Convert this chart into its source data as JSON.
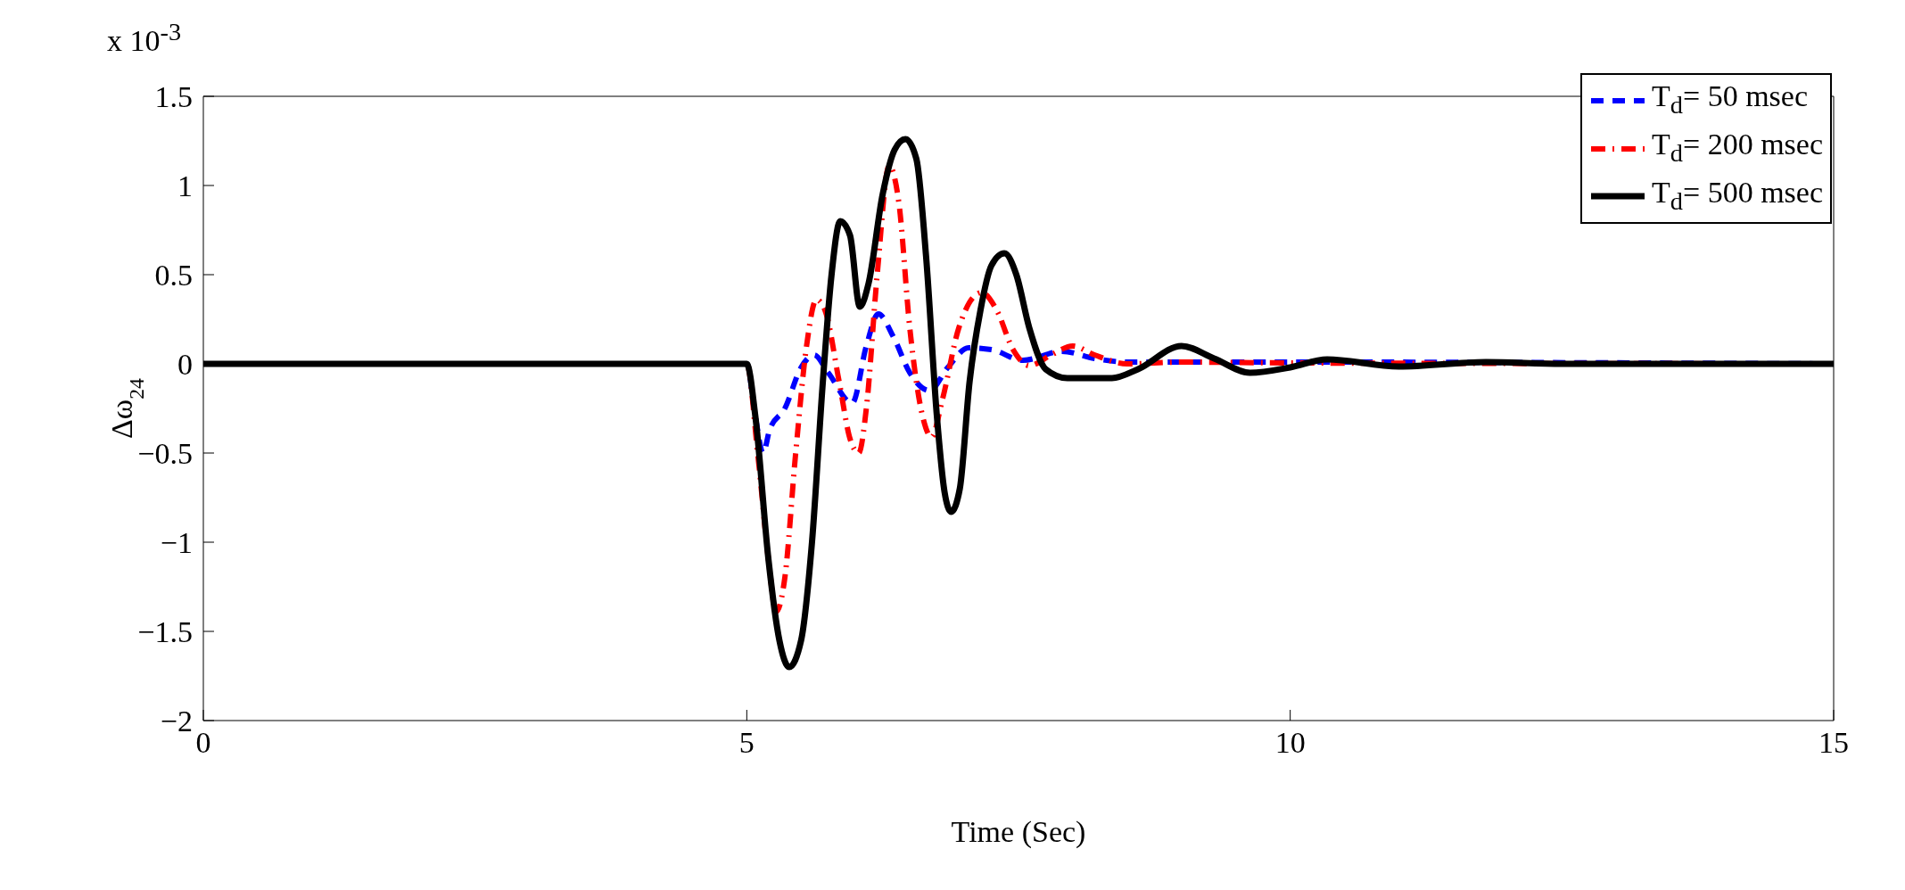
{
  "chart_data": {
    "type": "line",
    "xlabel": "Time (Sec)",
    "ylabel": "Δω$_{24}$",
    "annotations": [
      "x 10$^{-3}$"
    ],
    "xlim": [
      0,
      15
    ],
    "xticks": [
      0,
      5,
      10,
      15
    ],
    "ylim": [
      -2,
      1.5
    ],
    "yticks": [
      -2,
      -1.5,
      -1,
      -0.5,
      0,
      0.5,
      1,
      1.5
    ],
    "legend": "top right",
    "series": [
      {
        "name": "T$_{d}$= 50 msec",
        "color": "#0000ff",
        "line_style": "dashed",
        "x": [
          0,
          5,
          5.08,
          5.15,
          5.21,
          5.35,
          5.5,
          5.62,
          5.75,
          5.97,
          6.1,
          6.21,
          6.35,
          6.5,
          6.68,
          6.85,
          7.04,
          7.25,
          7.54,
          7.9,
          8.2,
          8.5,
          10,
          15
        ],
        "values": [
          0,
          0,
          -0.3,
          -0.5,
          -0.37,
          -0.25,
          -0.02,
          0.05,
          -0.05,
          -0.22,
          0.1,
          0.28,
          0.15,
          -0.05,
          -0.15,
          -0.02,
          0.09,
          0.08,
          0.02,
          0.07,
          0.03,
          0.01,
          0.01,
          0
        ]
      },
      {
        "name": "T$_{d}$= 200 msec",
        "color": "#ff0000",
        "line_style": "dashdot",
        "x": [
          0,
          5,
          5.1,
          5.2,
          5.27,
          5.35,
          5.45,
          5.55,
          5.64,
          5.72,
          5.85,
          5.95,
          6.03,
          6.1,
          6.2,
          6.31,
          6.4,
          6.5,
          6.62,
          6.7,
          6.8,
          6.95,
          7.16,
          7.3,
          7.45,
          7.6,
          7.8,
          8,
          8.2,
          8.5,
          9,
          10,
          15
        ],
        "values": [
          0,
          0,
          -0.5,
          -1.1,
          -1.39,
          -1.2,
          -0.5,
          0.1,
          0.36,
          0.3,
          -0.1,
          -0.42,
          -0.5,
          -0.25,
          0.5,
          1.11,
          0.9,
          0.2,
          -0.3,
          -0.41,
          -0.2,
          0.2,
          0.4,
          0.3,
          0.08,
          -0.01,
          0.05,
          0.1,
          0.05,
          0,
          0.01,
          0.005,
          0
        ]
      },
      {
        "name": "T$_{d}$= 500 msec",
        "color": "#000000",
        "line_style": "solid",
        "x": [
          0,
          5,
          5.08,
          5.2,
          5.3,
          5.39,
          5.5,
          5.6,
          5.7,
          5.78,
          5.86,
          5.95,
          6.04,
          6.12,
          6.25,
          6.36,
          6.46,
          6.56,
          6.65,
          6.75,
          6.82,
          6.88,
          6.96,
          7.05,
          7.15,
          7.25,
          7.37,
          7.48,
          7.6,
          7.75,
          7.95,
          8.36,
          8.6,
          9,
          9.3,
          9.63,
          10,
          10.34,
          11,
          11.8,
          12.5,
          15
        ],
        "values": [
          0,
          0,
          -0.3,
          -1.1,
          -1.55,
          -1.7,
          -1.55,
          -1,
          -0.1,
          0.5,
          0.8,
          0.72,
          0.32,
          0.45,
          0.95,
          1.2,
          1.26,
          1.15,
          0.6,
          -0.3,
          -0.72,
          -0.83,
          -0.7,
          -0.1,
          0.3,
          0.55,
          0.62,
          0.5,
          0.2,
          -0.03,
          -0.08,
          -0.08,
          -0.03,
          0.1,
          0.03,
          -0.05,
          -0.02,
          0.025,
          -0.015,
          0.01,
          0,
          0
        ]
      }
    ]
  }
}
